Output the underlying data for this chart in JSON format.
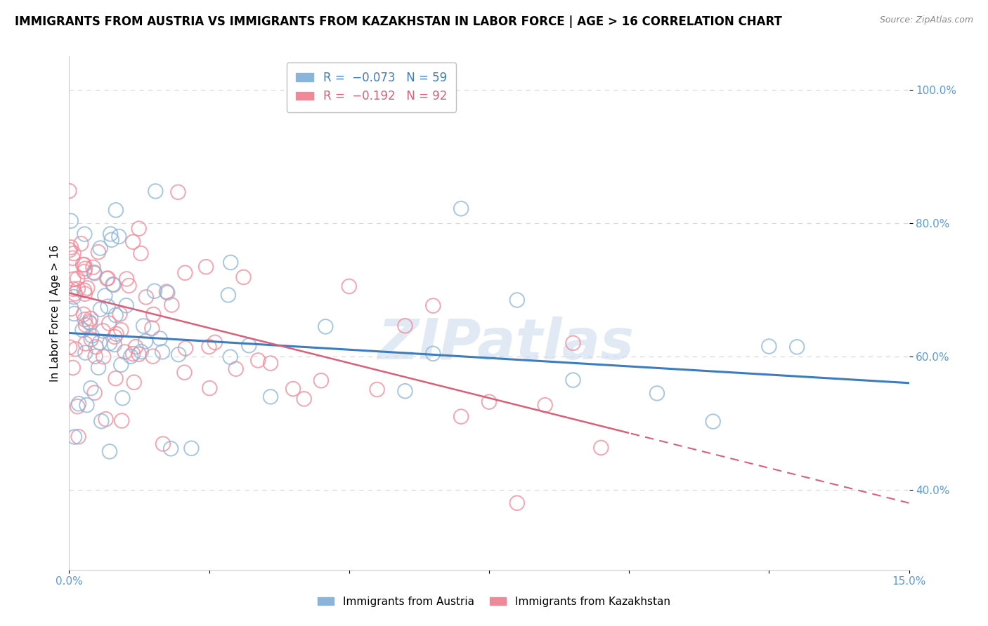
{
  "title": "IMMIGRANTS FROM AUSTRIA VS IMMIGRANTS FROM KAZAKHSTAN IN LABOR FORCE | AGE > 16 CORRELATION CHART",
  "source": "Source: ZipAtlas.com",
  "ylabel": "In Labor Force | Age > 16",
  "xlim": [
    0.0,
    0.15
  ],
  "ylim": [
    0.28,
    1.05
  ],
  "yticks": [
    0.4,
    0.6,
    0.8,
    1.0
  ],
  "yticklabels": [
    "40.0%",
    "60.0%",
    "80.0%",
    "100.0%"
  ],
  "austria_color": "#8ab4d9",
  "kazakhstan_color": "#f08898",
  "austria_R": -0.073,
  "austria_N": 59,
  "kazakhstan_R": -0.192,
  "kazakhstan_N": 92,
  "watermark": "ZIPatlas",
  "watermark_color": "#cddded",
  "background_color": "#ffffff",
  "grid_color": "#d8d8d8",
  "title_fontsize": 12,
  "axis_label_fontsize": 11,
  "tick_fontsize": 11,
  "tick_color": "#5b9bd5"
}
